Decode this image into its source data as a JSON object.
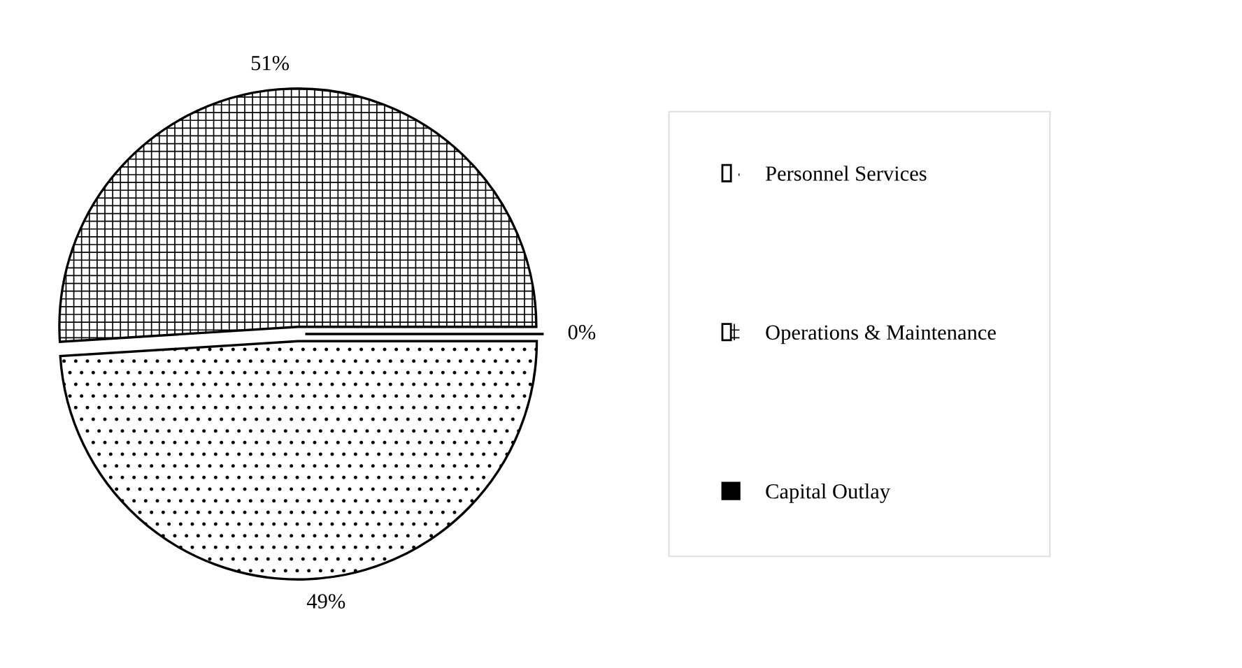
{
  "chart_data": {
    "type": "pie",
    "categories": [
      "Personnel Services",
      "Operations & Maintenance",
      "Capital Outlay"
    ],
    "values": [
      49,
      51,
      0
    ],
    "colors": [
      "#ffffff",
      "#ffffff",
      "#000000"
    ],
    "value_labels": [
      "49%",
      "51%",
      "0%"
    ],
    "legend": "right"
  }
}
